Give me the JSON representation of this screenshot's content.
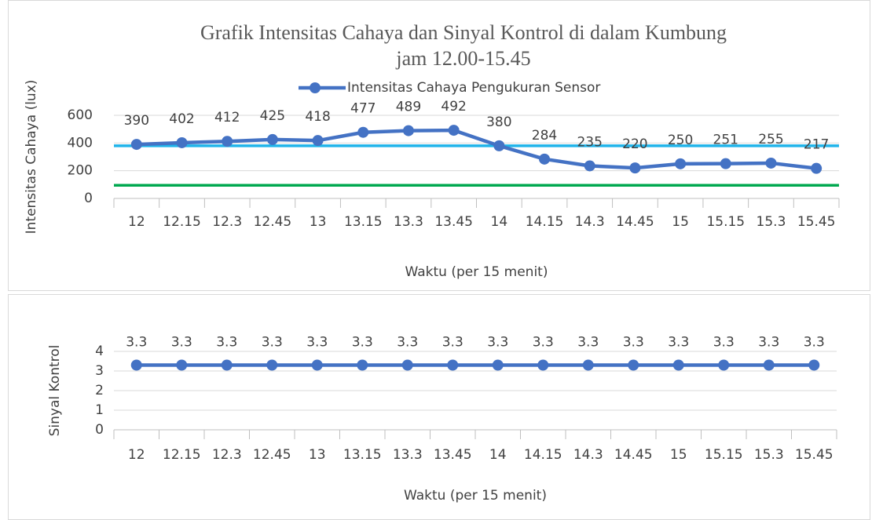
{
  "chart_data": [
    {
      "type": "line",
      "title": [
        "Grafik Intensitas Cahaya dan Sinyal Kontrol di dalam Kumbung",
        "jam 12.00-15.45"
      ],
      "y_label": "Intensitas Cahaya (lux)",
      "x_label": "Waktu (per 15 menit)",
      "categories": [
        "12",
        "12.15",
        "12.3",
        "12.45",
        "13",
        "13.15",
        "13.3",
        "13.45",
        "14",
        "14.15",
        "14.3",
        "14.45",
        "15",
        "15.15",
        "15.3",
        "15.45"
      ],
      "series": [
        {
          "name": "Intensitas Cahaya Pengukuran Sensor",
          "color": "#4472c4",
          "values": [
            390,
            402,
            412,
            425,
            418,
            477,
            489,
            492,
            380,
            284,
            235,
            220,
            250,
            251,
            255,
            217
          ]
        }
      ],
      "reference_lines": [
        {
          "value": 380,
          "color": "#1fb4ea"
        },
        {
          "value": 95,
          "color": "#00a84f"
        }
      ],
      "ylim": [
        0,
        600
      ],
      "yticks": [
        0,
        200,
        400,
        600
      ],
      "grid": true,
      "legend": "top",
      "data_labels": true
    },
    {
      "type": "line",
      "y_label": "Sinyal Kontrol",
      "x_label": "Waktu (per 15 menit)",
      "categories": [
        "12",
        "12.15",
        "12.3",
        "12.45",
        "13",
        "13.15",
        "13.3",
        "13.45",
        "14",
        "14.15",
        "14.3",
        "14.45",
        "15",
        "15.15",
        "15.3",
        "15.45"
      ],
      "values": [
        3.3,
        3.3,
        3.3,
        3.3,
        3.3,
        3.3,
        3.3,
        3.3,
        3.3,
        3.3,
        3.3,
        3.3,
        3.3,
        3.3,
        3.3,
        3.3
      ],
      "color": "#4472c4",
      "ylim": [
        0,
        4
      ],
      "yticks": [
        0,
        1,
        2,
        3,
        4
      ],
      "grid": true,
      "data_labels": true
    }
  ]
}
